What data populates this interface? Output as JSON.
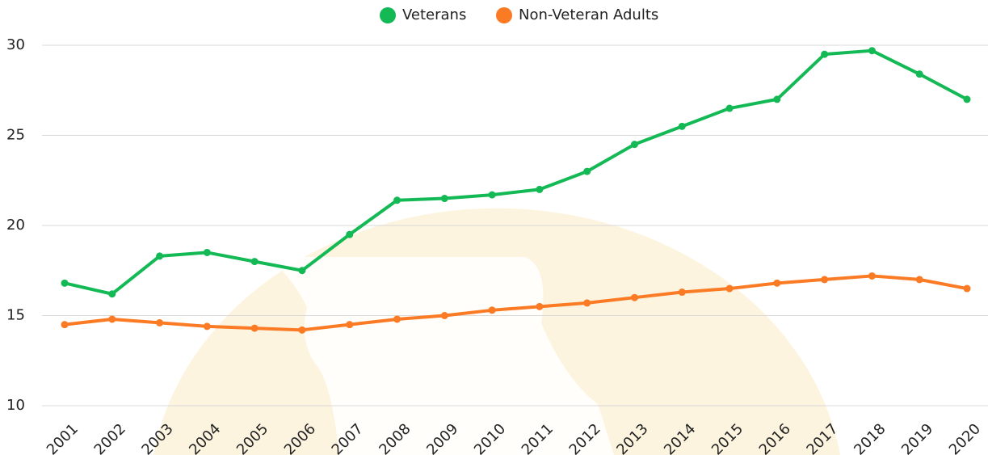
{
  "chart_data": {
    "type": "line",
    "categories": [
      "2001",
      "2002",
      "2003",
      "2004",
      "2005",
      "2006",
      "2007",
      "2008",
      "2009",
      "2010",
      "2011",
      "2012",
      "2013",
      "2014",
      "2015",
      "2016",
      "2017",
      "2018",
      "2019",
      "2020"
    ],
    "series": [
      {
        "name": "Veterans",
        "color": "#13b955",
        "values": [
          16.8,
          16.2,
          18.3,
          18.5,
          18.0,
          17.5,
          19.5,
          21.4,
          21.5,
          21.7,
          22.0,
          23.0,
          24.5,
          25.5,
          26.5,
          27.0,
          29.5,
          29.7,
          28.4,
          27.0
        ]
      },
      {
        "name": "Non-Veteran Adults",
        "color": "#fb7a24",
        "values": [
          14.5,
          14.8,
          14.6,
          14.4,
          14.3,
          14.2,
          14.5,
          14.8,
          15.0,
          15.3,
          15.5,
          15.7,
          16.0,
          16.3,
          16.5,
          16.8,
          17.0,
          17.2,
          17.0,
          16.5
        ]
      }
    ],
    "ylim": [
      10,
      30
    ],
    "yticks": [
      10,
      15,
      20,
      25,
      30
    ],
    "grid": true,
    "legend": "top"
  }
}
